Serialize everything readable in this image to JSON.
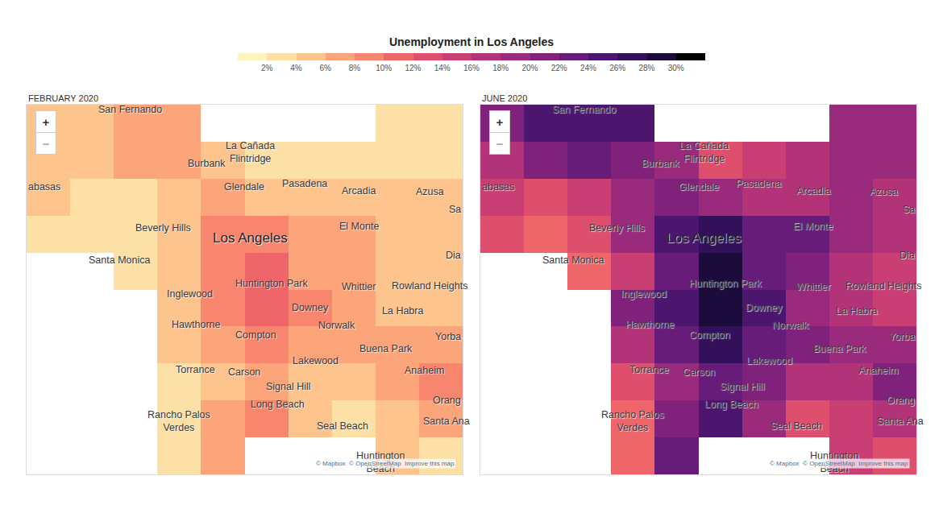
{
  "chart_data": {
    "type": "heatmap",
    "title": "Unemployment in Los Angeles",
    "tick_labels": false,
    "x": [
      -118.64,
      -118.56,
      -118.48,
      -118.4,
      -118.32,
      -118.24,
      -118.16,
      -118.08,
      -118.0,
      -117.92
    ],
    "y": [
      33.7,
      33.76,
      33.82,
      33.88,
      33.94,
      34.0,
      34.06,
      34.12,
      34.18,
      34.24
    ],
    "xlim": [
      -118.68,
      -117.88
    ],
    "ylim": [
      33.67,
      34.27
    ],
    "colorbar": {
      "range": [
        0,
        32
      ],
      "ticks": [
        {
          "value": 2,
          "label": "2%"
        },
        {
          "value": 4,
          "label": "4%"
        },
        {
          "value": 6,
          "label": "6%"
        },
        {
          "value": 8,
          "label": "8%"
        },
        {
          "value": 10,
          "label": "10%"
        },
        {
          "value": 12,
          "label": "12%"
        },
        {
          "value": 14,
          "label": "14%"
        },
        {
          "value": 16,
          "label": "16%"
        },
        {
          "value": 18,
          "label": "18%"
        },
        {
          "value": 20,
          "label": "20%"
        },
        {
          "value": 22,
          "label": "22%"
        },
        {
          "value": 24,
          "label": "24%"
        },
        {
          "value": 26,
          "label": "26%"
        },
        {
          "value": 28,
          "label": "28%"
        },
        {
          "value": 30,
          "label": "30%"
        }
      ],
      "colors": [
        "#fcf3bd",
        "#fde0a6",
        "#fdc48e",
        "#fca57b",
        "#f8866f",
        "#ee6669",
        "#de4f6e",
        "#c93f74",
        "#b33379",
        "#9a2a7c",
        "#80227c",
        "#661c78",
        "#4c166e",
        "#33115a",
        "#1c0c3c",
        "#000000"
      ]
    },
    "panels": [
      {
        "title": "FEBRUARY 2020",
        "cells": [
          [
            null,
            null,
            null,
            2,
            7,
            null,
            null,
            null,
            4,
            3
          ],
          [
            null,
            null,
            null,
            2,
            6,
            8,
            5,
            3,
            4,
            6
          ],
          [
            null,
            null,
            null,
            3,
            5,
            6,
            5,
            5,
            6,
            8
          ],
          [
            null,
            null,
            null,
            4,
            6,
            9,
            7,
            6,
            6,
            7
          ],
          [
            null,
            null,
            null,
            5,
            9,
            10,
            8,
            6,
            5,
            5
          ],
          [
            null,
            null,
            3,
            5,
            8,
            10,
            7,
            6,
            5,
            4
          ],
          [
            3,
            2,
            3,
            5,
            8,
            9,
            6,
            6,
            5,
            4
          ],
          [
            4,
            3,
            3,
            5,
            6,
            5,
            4,
            4,
            5,
            4
          ],
          [
            4,
            5,
            6,
            6,
            5,
            3,
            3,
            3,
            3,
            3
          ],
          [
            4,
            5,
            6,
            6,
            null,
            null,
            null,
            null,
            2,
            2
          ]
        ]
      },
      {
        "title": "JUNE 2020",
        "cells": [
          [
            null,
            null,
            null,
            10,
            22,
            null,
            null,
            null,
            14,
            12
          ],
          [
            null,
            null,
            null,
            10,
            20,
            24,
            18,
            12,
            14,
            16
          ],
          [
            null,
            null,
            null,
            12,
            18,
            22,
            20,
            16,
            17,
            20
          ],
          [
            null,
            null,
            null,
            16,
            22,
            27,
            22,
            20,
            18,
            18
          ],
          [
            null,
            null,
            null,
            20,
            25,
            28,
            24,
            19,
            16,
            15
          ],
          [
            null,
            null,
            10,
            14,
            22,
            28,
            22,
            20,
            17,
            15
          ],
          [
            12,
            10,
            12,
            18,
            24,
            27,
            22,
            22,
            19,
            17
          ],
          [
            14,
            12,
            14,
            18,
            20,
            19,
            16,
            17,
            18,
            16
          ],
          [
            16,
            20,
            22,
            21,
            18,
            12,
            14,
            16,
            19,
            19
          ],
          [
            20,
            24,
            25,
            24,
            null,
            null,
            null,
            null,
            19,
            19
          ]
        ]
      }
    ],
    "places": [
      {
        "label": "San Fernando",
        "x": -118.49,
        "y": 34.262
      },
      {
        "label": "La Cañada\nFlintridge",
        "x": -118.27,
        "y": 34.193
      },
      {
        "label": "Burbank",
        "x": -118.35,
        "y": 34.175
      },
      {
        "label": "Glendale",
        "x": -118.28,
        "y": 34.137
      },
      {
        "label": "Pasadena",
        "x": -118.17,
        "y": 34.142
      },
      {
        "label": "Arcadia",
        "x": -118.07,
        "y": 34.13
      },
      {
        "label": "Azusa",
        "x": -117.94,
        "y": 34.129
      },
      {
        "label": "abasas",
        "x": -118.68,
        "y": 34.137
      },
      {
        "label": "Sa",
        "x": -117.88,
        "y": 34.1
      },
      {
        "label": "Beverly Hills",
        "x": -118.43,
        "y": 34.07
      },
      {
        "label": "Los Angeles",
        "x": -118.27,
        "y": 34.054
      },
      {
        "label": "El Monte",
        "x": -118.07,
        "y": 34.072
      },
      {
        "label": "Santa Monica",
        "x": -118.51,
        "y": 34.018
      },
      {
        "label": "Dia",
        "x": -117.88,
        "y": 34.025
      },
      {
        "label": "Huntington Park",
        "x": -118.23,
        "y": 33.98
      },
      {
        "label": "Whittier",
        "x": -118.07,
        "y": 33.975
      },
      {
        "label": "Rowland Heights",
        "x": -117.94,
        "y": 33.976
      },
      {
        "label": "Inglewood",
        "x": -118.38,
        "y": 33.963
      },
      {
        "label": "Downey",
        "x": -118.16,
        "y": 33.94
      },
      {
        "label": "La Habra",
        "x": -117.99,
        "y": 33.935
      },
      {
        "label": "Hawthorne",
        "x": -118.37,
        "y": 33.913
      },
      {
        "label": "Norwalk",
        "x": -118.11,
        "y": 33.912
      },
      {
        "label": "Compton",
        "x": -118.26,
        "y": 33.896
      },
      {
        "label": "Yorba",
        "x": -117.88,
        "y": 33.893
      },
      {
        "label": "Buena Park",
        "x": -118.02,
        "y": 33.874
      },
      {
        "label": "Lakewood",
        "x": -118.15,
        "y": 33.854
      },
      {
        "label": "Torrance",
        "x": -118.37,
        "y": 33.84
      },
      {
        "label": "Anaheim",
        "x": -117.95,
        "y": 33.839
      },
      {
        "label": "Carson",
        "x": -118.28,
        "y": 33.836
      },
      {
        "label": "Signal Hill",
        "x": -118.2,
        "y": 33.813
      },
      {
        "label": "Long Beach",
        "x": -118.22,
        "y": 33.784
      },
      {
        "label": "Orang",
        "x": -117.88,
        "y": 33.79
      },
      {
        "label": "Rancho Palos\nVerdes",
        "x": -118.4,
        "y": 33.756
      },
      {
        "label": "Santa Ana",
        "x": -117.91,
        "y": 33.756
      },
      {
        "label": "Seal Beach",
        "x": -118.1,
        "y": 33.749
      },
      {
        "label": "Huntington\nBeach",
        "x": -118.03,
        "y": 33.69
      }
    ],
    "zoom_buttons": [
      "+",
      "−"
    ],
    "attribution": [
      "© Mapbox",
      "© OpenStreetMap",
      "Improve this map"
    ]
  }
}
